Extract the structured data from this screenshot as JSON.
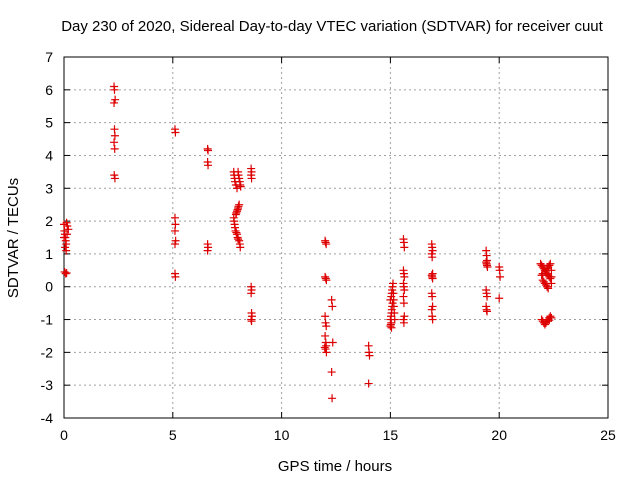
{
  "chart_data": {
    "type": "scatter",
    "title": "Day 230 of 2020, Sidereal Day-to-day VTEC variation (SDTVAR) for receiver cuut",
    "xlabel": "GPS time / hours",
    "ylabel": "SDTVAR / TECUs",
    "xlim": [
      0,
      25
    ],
    "ylim": [
      -4,
      7
    ],
    "xticks": [
      0,
      5,
      10,
      15,
      20,
      25
    ],
    "yticks": [
      -4,
      -3,
      -2,
      -1,
      0,
      1,
      2,
      3,
      4,
      5,
      6,
      7
    ],
    "grid": true,
    "marker": "+",
    "color": "#dd0000",
    "series": [
      {
        "name": "SDTVAR",
        "points": [
          [
            0.0,
            1.9
          ],
          [
            0.02,
            1.7
          ],
          [
            0.04,
            1.6
          ],
          [
            0.06,
            1.5
          ],
          [
            0.08,
            1.4
          ],
          [
            0.1,
            1.3
          ],
          [
            0.05,
            1.2
          ],
          [
            0.0,
            1.5
          ],
          [
            0.12,
            1.95
          ],
          [
            0.15,
            1.85
          ],
          [
            0.14,
            1.6
          ],
          [
            0.1,
            1.1
          ],
          [
            0.03,
            0.45
          ],
          [
            0.08,
            0.4
          ],
          [
            0.12,
            0.42
          ],
          [
            0.2,
            1.75
          ],
          [
            2.3,
            6.1
          ],
          [
            2.32,
            6.0
          ],
          [
            2.35,
            5.7
          ],
          [
            2.3,
            5.6
          ],
          [
            2.32,
            4.8
          ],
          [
            2.34,
            4.6
          ],
          [
            2.3,
            4.4
          ],
          [
            2.33,
            4.2
          ],
          [
            2.31,
            3.4
          ],
          [
            2.34,
            3.3
          ],
          [
            5.1,
            4.8
          ],
          [
            5.12,
            4.7
          ],
          [
            5.1,
            2.1
          ],
          [
            5.12,
            1.9
          ],
          [
            5.1,
            1.7
          ],
          [
            5.13,
            1.4
          ],
          [
            5.1,
            1.3
          ],
          [
            5.1,
            0.4
          ],
          [
            5.12,
            0.3
          ],
          [
            6.6,
            4.2
          ],
          [
            6.62,
            4.15
          ],
          [
            6.6,
            3.8
          ],
          [
            6.62,
            3.7
          ],
          [
            6.6,
            1.3
          ],
          [
            6.62,
            1.2
          ],
          [
            6.6,
            1.1
          ],
          [
            7.8,
            3.5
          ],
          [
            7.82,
            3.4
          ],
          [
            7.84,
            3.3
          ],
          [
            7.86,
            3.2
          ],
          [
            7.9,
            3.1
          ],
          [
            7.95,
            3.0
          ],
          [
            8.0,
            3.5
          ],
          [
            8.02,
            3.4
          ],
          [
            8.05,
            3.3
          ],
          [
            8.08,
            3.2
          ],
          [
            8.1,
            3.1
          ],
          [
            8.12,
            3.05
          ],
          [
            7.8,
            2.1
          ],
          [
            7.82,
            2.0
          ],
          [
            7.84,
            1.9
          ],
          [
            7.86,
            1.8
          ],
          [
            7.88,
            1.7
          ],
          [
            7.9,
            2.2
          ],
          [
            7.92,
            2.25
          ],
          [
            7.95,
            2.3
          ],
          [
            7.98,
            2.35
          ],
          [
            8.0,
            2.4
          ],
          [
            8.02,
            2.45
          ],
          [
            8.05,
            2.5
          ],
          [
            7.92,
            1.65
          ],
          [
            7.95,
            1.6
          ],
          [
            7.98,
            1.5
          ],
          [
            8.0,
            1.45
          ],
          [
            8.05,
            1.4
          ],
          [
            8.08,
            1.3
          ],
          [
            8.1,
            1.2
          ],
          [
            8.6,
            3.6
          ],
          [
            8.62,
            3.5
          ],
          [
            8.6,
            3.4
          ],
          [
            8.62,
            3.3
          ],
          [
            8.6,
            0.0
          ],
          [
            8.62,
            -0.1
          ],
          [
            8.6,
            -0.2
          ],
          [
            8.62,
            -0.8
          ],
          [
            8.64,
            -0.9
          ],
          [
            8.6,
            -1.0
          ],
          [
            8.62,
            -1.05
          ],
          [
            12.0,
            1.4
          ],
          [
            12.02,
            1.35
          ],
          [
            12.05,
            1.3
          ],
          [
            12.0,
            0.3
          ],
          [
            12.03,
            0.25
          ],
          [
            12.06,
            0.2
          ],
          [
            12.0,
            -0.9
          ],
          [
            12.02,
            -1.1
          ],
          [
            12.05,
            -1.2
          ],
          [
            12.0,
            -1.5
          ],
          [
            12.03,
            -1.7
          ],
          [
            12.05,
            -1.8
          ],
          [
            11.98,
            -1.85
          ],
          [
            12.02,
            -1.9
          ],
          [
            12.06,
            -2.0
          ],
          [
            12.3,
            -0.4
          ],
          [
            12.33,
            -0.6
          ],
          [
            12.35,
            -1.7
          ],
          [
            12.3,
            -2.6
          ],
          [
            12.32,
            -3.4
          ],
          [
            14.0,
            -1.8
          ],
          [
            14.02,
            -2.0
          ],
          [
            14.04,
            -2.1
          ],
          [
            14.0,
            -2.95
          ],
          [
            15.0,
            -1.2
          ],
          [
            15.02,
            -1.15
          ],
          [
            15.04,
            -1.1
          ],
          [
            15.0,
            -1.0
          ],
          [
            15.03,
            -0.9
          ],
          [
            15.05,
            -0.8
          ],
          [
            15.06,
            -0.7
          ],
          [
            15.08,
            -0.6
          ],
          [
            15.1,
            -0.5
          ],
          [
            15.0,
            -0.4
          ],
          [
            15.04,
            -0.3
          ],
          [
            15.06,
            -0.2
          ],
          [
            15.08,
            -0.1
          ],
          [
            15.1,
            0.0
          ],
          [
            15.12,
            0.1
          ],
          [
            15.14,
            -0.2
          ],
          [
            15.15,
            -0.4
          ],
          [
            15.16,
            -0.6
          ],
          [
            15.18,
            -0.8
          ],
          [
            15.2,
            -1.0
          ],
          [
            15.05,
            -1.25
          ],
          [
            15.6,
            1.45
          ],
          [
            15.62,
            1.35
          ],
          [
            15.64,
            1.2
          ],
          [
            15.6,
            0.5
          ],
          [
            15.62,
            0.4
          ],
          [
            15.64,
            0.3
          ],
          [
            15.6,
            0.1
          ],
          [
            15.62,
            0.0
          ],
          [
            15.64,
            -0.1
          ],
          [
            15.6,
            -0.3
          ],
          [
            15.62,
            -0.5
          ],
          [
            15.64,
            -0.9
          ],
          [
            15.6,
            -1.0
          ],
          [
            15.62,
            -1.1
          ],
          [
            16.9,
            1.3
          ],
          [
            16.92,
            1.2
          ],
          [
            16.94,
            1.1
          ],
          [
            16.9,
            1.0
          ],
          [
            16.92,
            0.9
          ],
          [
            16.94,
            0.4
          ],
          [
            16.9,
            0.35
          ],
          [
            16.92,
            0.3
          ],
          [
            16.94,
            0.25
          ],
          [
            16.9,
            -0.2
          ],
          [
            16.92,
            -0.3
          ],
          [
            16.94,
            -0.6
          ],
          [
            16.9,
            -0.7
          ],
          [
            16.92,
            -0.9
          ],
          [
            16.94,
            -1.0
          ],
          [
            19.4,
            1.1
          ],
          [
            19.42,
            0.95
          ],
          [
            19.44,
            0.8
          ],
          [
            19.4,
            0.75
          ],
          [
            19.42,
            0.7
          ],
          [
            19.44,
            0.65
          ],
          [
            19.46,
            0.6
          ],
          [
            19.4,
            -0.1
          ],
          [
            19.42,
            -0.2
          ],
          [
            19.44,
            -0.3
          ],
          [
            19.4,
            -0.6
          ],
          [
            19.42,
            -0.7
          ],
          [
            19.44,
            -0.75
          ],
          [
            20.0,
            0.6
          ],
          [
            20.02,
            0.5
          ],
          [
            20.04,
            0.3
          ],
          [
            20.0,
            -0.35
          ],
          [
            21.9,
            0.7
          ],
          [
            21.95,
            0.65
          ],
          [
            22.0,
            0.6
          ],
          [
            22.05,
            0.55
          ],
          [
            22.1,
            0.5
          ],
          [
            22.15,
            0.45
          ],
          [
            22.2,
            0.4
          ],
          [
            22.25,
            0.35
          ],
          [
            22.3,
            0.3
          ],
          [
            22.35,
            0.25
          ],
          [
            22.0,
            0.2
          ],
          [
            22.05,
            0.15
          ],
          [
            22.1,
            0.1
          ],
          [
            22.15,
            0.05
          ],
          [
            22.2,
            0.0
          ],
          [
            22.25,
            -0.05
          ],
          [
            21.95,
            0.35
          ],
          [
            22.0,
            0.4
          ],
          [
            22.2,
            0.55
          ],
          [
            22.25,
            0.6
          ],
          [
            22.3,
            0.65
          ],
          [
            22.35,
            0.7
          ],
          [
            22.4,
            0.5
          ],
          [
            22.4,
            0.3
          ],
          [
            22.4,
            0.1
          ],
          [
            21.95,
            -1.0
          ],
          [
            22.0,
            -1.05
          ],
          [
            22.05,
            -1.1
          ],
          [
            22.1,
            -1.15
          ],
          [
            22.15,
            -1.1
          ],
          [
            22.2,
            -1.05
          ],
          [
            22.25,
            -1.0
          ],
          [
            22.3,
            -0.95
          ],
          [
            22.35,
            -0.9
          ],
          [
            22.4,
            -0.95
          ],
          [
            22.2,
            -1.0
          ],
          [
            22.3,
            -1.02
          ]
        ]
      }
    ]
  }
}
